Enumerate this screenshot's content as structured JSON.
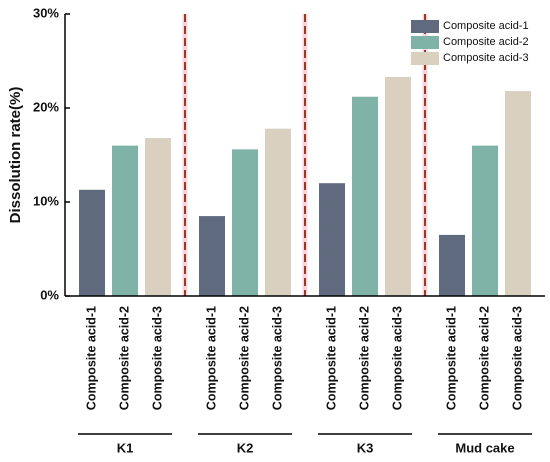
{
  "chart_data": {
    "type": "bar",
    "ylabel": "Dissolution rate(%)",
    "categories": [
      "K1",
      "K2",
      "K3",
      "Mud cake"
    ],
    "series": [
      {
        "name": "Composite acid-1",
        "color": "#5f6a7f",
        "values": [
          11.3,
          8.5,
          12.0,
          6.5
        ]
      },
      {
        "name": "Composite acid-2",
        "color": "#80b3a7",
        "values": [
          16.0,
          15.6,
          21.2,
          16.0
        ]
      },
      {
        "name": "Composite acid-3",
        "color": "#d9d0bf",
        "values": [
          16.8,
          17.8,
          23.3,
          21.8
        ]
      }
    ],
    "ylim": [
      0,
      30
    ],
    "yticks": [
      {
        "value": 0,
        "label": "0%"
      },
      {
        "value": 10,
        "label": "10%"
      },
      {
        "value": 20,
        "label": "20%"
      },
      {
        "value": 30,
        "label": "30%"
      }
    ],
    "legend": "upper right"
  }
}
